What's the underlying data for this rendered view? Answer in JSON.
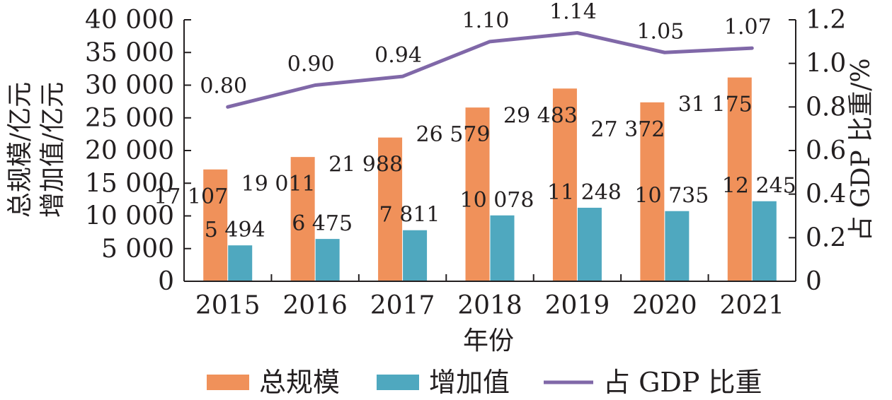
{
  "chart_data": {
    "type": "bar",
    "categories": [
      "2015",
      "2016",
      "2017",
      "2018",
      "2019",
      "2020",
      "2021"
    ],
    "xlabel": "年份",
    "ylabel_left": [
      "总规模/亿元",
      "增加值/亿元"
    ],
    "ylabel_right": "占 GDP 比重/%",
    "ylim_left": [
      0,
      40000
    ],
    "ylim_right": [
      0,
      1.2
    ],
    "yticks_left": [
      "0",
      "5 000",
      "10 000",
      "15 000",
      "20 000",
      "25 000",
      "30 000",
      "35 000",
      "40 000"
    ],
    "yticks_right": [
      "0",
      "0.2",
      "0.4",
      "0.6",
      "0.8",
      "1.0",
      "1.2"
    ],
    "series": [
      {
        "name": "总规模",
        "type": "bar",
        "axis": "left",
        "color": "#f0915a",
        "values": [
          17107,
          19011,
          21988,
          26579,
          29483,
          27372,
          31175
        ],
        "labels": [
          "17 107",
          "19 011",
          "21 988",
          "26 579",
          "29 483",
          "27 372",
          "31 175"
        ]
      },
      {
        "name": "增加值",
        "type": "bar",
        "axis": "left",
        "color": "#4fa8bf",
        "values": [
          5494,
          6475,
          7811,
          10078,
          11248,
          10735,
          12245
        ],
        "labels": [
          "5 494",
          "6 475",
          "7 811",
          "10 078",
          "11 248",
          "10 735",
          "12 245"
        ]
      },
      {
        "name": "占 GDP 比重",
        "type": "line",
        "axis": "right",
        "color": "#8068a8",
        "values": [
          0.8,
          0.9,
          0.94,
          1.1,
          1.14,
          1.05,
          1.07
        ],
        "labels": [
          "0.80",
          "0.90",
          "0.94",
          "1.10",
          "1.14",
          "1.05",
          "1.07"
        ]
      }
    ],
    "grid": false,
    "legend_position": "bottom"
  }
}
